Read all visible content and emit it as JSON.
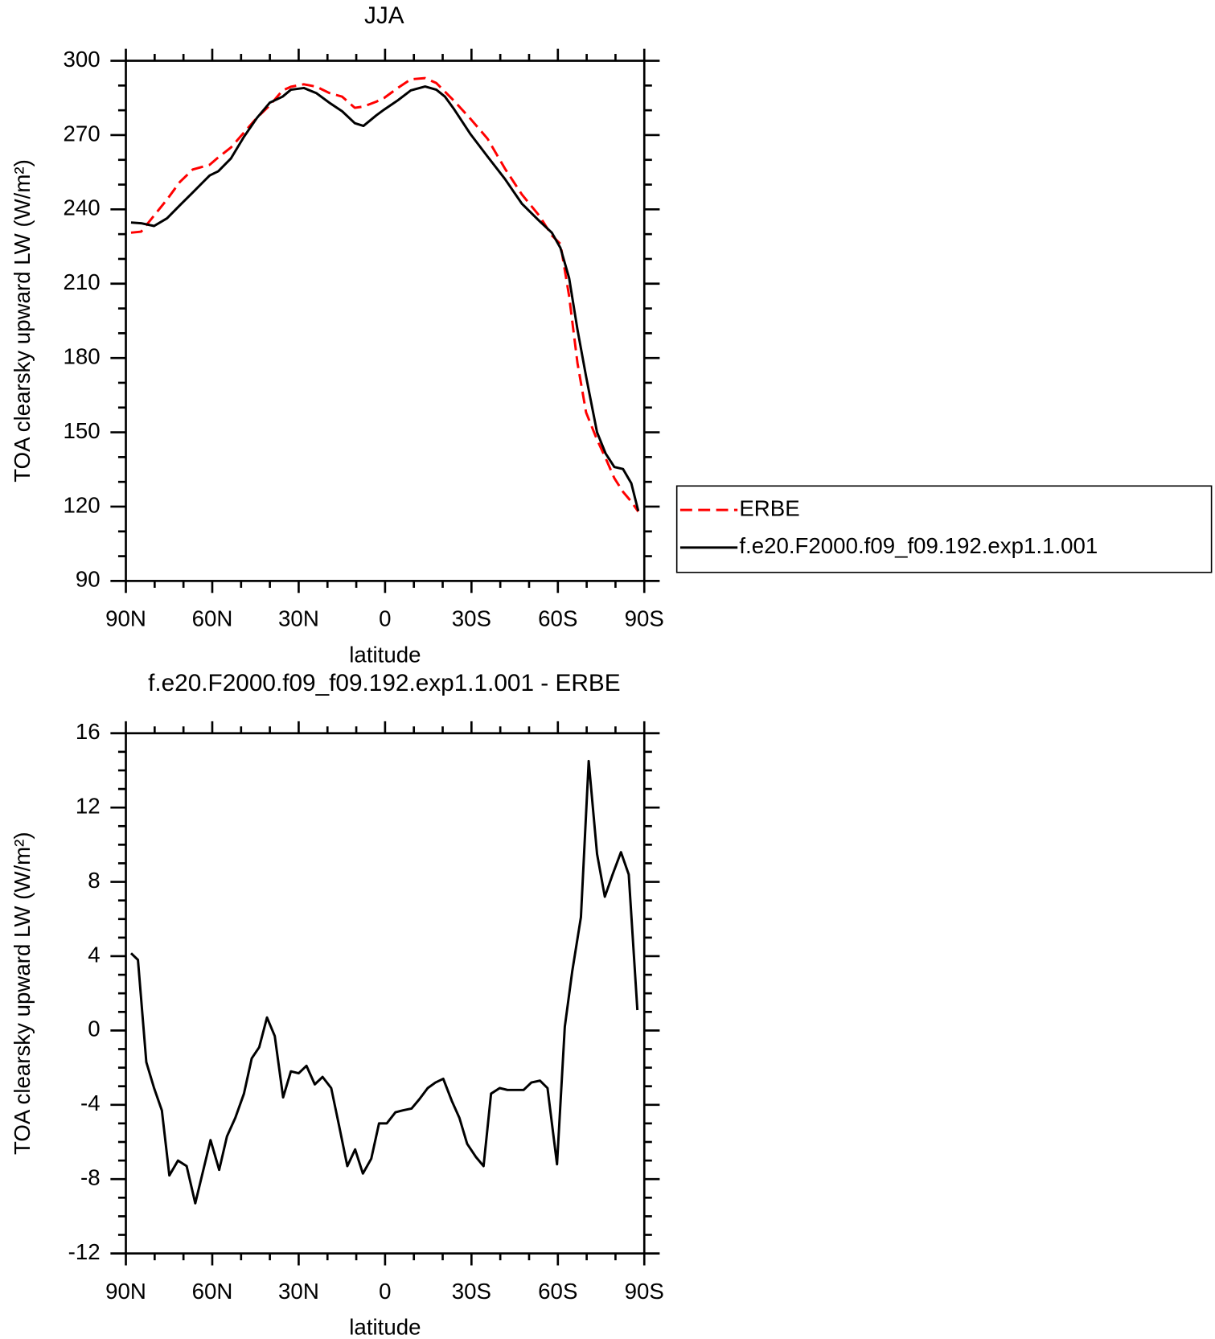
{
  "chart_data": [
    {
      "type": "line",
      "title": "JJA",
      "xlabel": "latitude",
      "ylabel": "TOA clearsky upward LW (W/m²)",
      "xlim": [
        90,
        -90
      ],
      "xticks": [
        {
          "value": 90,
          "label": "90N"
        },
        {
          "value": 60,
          "label": "60N"
        },
        {
          "value": 30,
          "label": "30N"
        },
        0,
        {
          "value": -30,
          "label": "30S"
        },
        {
          "value": -60,
          "label": "60S"
        },
        {
          "value": -90,
          "label": "90S"
        }
      ],
      "ylim": [
        90,
        300
      ],
      "yticks": [
        90,
        120,
        150,
        180,
        210,
        240,
        270,
        300
      ],
      "legend": "right",
      "x": [
        88.2,
        84.7,
        80.2,
        75.7,
        71.3,
        66.8,
        60.9,
        57.9,
        53.5,
        49.0,
        44.5,
        40.0,
        35.6,
        32.7,
        28.2,
        23.8,
        19.4,
        14.9,
        10.5,
        7.5,
        3.0,
        0.3,
        -4.4,
        -8.9,
        -13.9,
        -17.8,
        -20.8,
        -23.8,
        -29.7,
        -35.6,
        -41.6,
        -47.5,
        -53.5,
        -57.9,
        -60.9,
        -63.9,
        -66.8,
        -69.8,
        -73.6,
        -76.6,
        -79.6,
        -82.6,
        -85.5,
        -87.9
      ],
      "series": [
        {
          "name": "ERBE",
          "color": "#ff0000",
          "style": "dashed",
          "values": [
            230.6,
            231,
            237.5,
            244,
            251,
            256.1,
            258,
            261,
            265,
            271,
            277,
            282,
            288,
            289.5,
            290.5,
            289.5,
            287,
            285.5,
            281,
            281.5,
            283.5,
            285,
            289,
            292.5,
            293,
            291,
            287.5,
            284,
            276.5,
            268.5,
            256.5,
            246,
            237.5,
            229.5,
            226,
            205,
            178,
            158,
            147,
            139.5,
            131.5,
            126,
            122,
            118
          ]
        },
        {
          "name": "f.e20.F2000.f09_f09.192.exp1.1.001",
          "color": "#000000",
          "style": "solid",
          "values": [
            234.7,
            234.4,
            233.3,
            236.4,
            241.6,
            246.8,
            253.7,
            255.4,
            260.6,
            269.3,
            276.9,
            283.1,
            285.5,
            288.3,
            289.0,
            286.9,
            283.1,
            279.6,
            274.8,
            273.7,
            278,
            280.3,
            284,
            288,
            289.6,
            288.3,
            285.5,
            280.7,
            270.3,
            261.3,
            252.3,
            242.3,
            235.4,
            230.6,
            224.4,
            212.3,
            191.5,
            172.5,
            150,
            141.4,
            136,
            135.2,
            129.4,
            118.3
          ]
        }
      ]
    },
    {
      "type": "line",
      "title": "f.e20.F2000.f09_f09.192.exp1.1.001 - ERBE",
      "xlabel": "latitude",
      "ylabel": "TOA clearsky upward LW (W/m²)",
      "xlim": [
        90,
        -90
      ],
      "xticks": [
        {
          "value": 90,
          "label": "90N"
        },
        {
          "value": 60,
          "label": "60N"
        },
        {
          "value": 30,
          "label": "30N"
        },
        0,
        {
          "value": -30,
          "label": "30S"
        },
        {
          "value": -60,
          "label": "60S"
        },
        {
          "value": -90,
          "label": "90S"
        }
      ],
      "ylim": [
        -12,
        16
      ],
      "yticks": [
        -12,
        -8,
        -4,
        0,
        4,
        8,
        12,
        16
      ],
      "x": [
        88.2,
        85.8,
        82.9,
        80.2,
        77.5,
        74.9,
        71.9,
        68.9,
        65.9,
        60.6,
        57.6,
        54.9,
        52.0,
        49.0,
        46.3,
        43.7,
        41.0,
        38.3,
        35.4,
        32.7,
        30.0,
        27.3,
        24.4,
        21.7,
        18.7,
        16.0,
        13.1,
        10.4,
        7.7,
        4.8,
        2.1,
        -0.6,
        -3.6,
        -6.2,
        -9.2,
        -11.9,
        -14.8,
        -17.5,
        -20.2,
        -23.2,
        -25.8,
        -28.5,
        -31.5,
        -34.2,
        -36.8,
        -39.8,
        -42.5,
        -45.4,
        -48.1,
        -50.8,
        -53.8,
        -56.4,
        -59.7,
        -62.4,
        -65.0,
        -68.0,
        -70.7,
        -73.6,
        -76.3,
        -79.0,
        -81.9,
        -84.6,
        -87.6
      ],
      "series": [
        {
          "color": "#000000",
          "style": "solid",
          "values": [
            4.16,
            3.8,
            -1.7,
            -3.1,
            -4.3,
            -7.8,
            -7.0,
            -7.3,
            -9.3,
            -5.9,
            -7.5,
            -5.7,
            -4.7,
            -3.4,
            -1.5,
            -0.9,
            0.7,
            -0.3,
            -3.6,
            -2.2,
            -2.3,
            -1.9,
            -2.9,
            -2.5,
            -3.1,
            -5.1,
            -7.3,
            -6.4,
            -7.7,
            -6.9,
            -5.0,
            -5.0,
            -4.4,
            -4.3,
            -4.2,
            -3.7,
            -3.1,
            -2.8,
            -2.6,
            -3.8,
            -4.7,
            -6.1,
            -6.8,
            -7.3,
            -3.4,
            -3.1,
            -3.2,
            -3.2,
            -3.2,
            -2.8,
            -2.7,
            -3.1,
            -7.2,
            0.2,
            3.2,
            6.1,
            14.5,
            9.5,
            7.2,
            8.4,
            9.6,
            8.4,
            1.1
          ]
        }
      ]
    }
  ]
}
